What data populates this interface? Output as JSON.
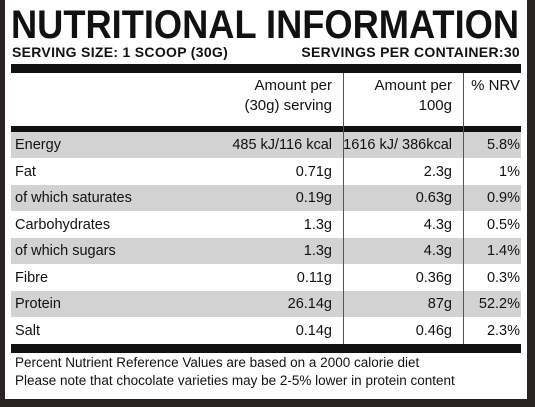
{
  "header": {
    "title": "NUTRITIONAL INFORMATION",
    "serving_size": "SERVING SIZE: 1 SCOOP (30G)",
    "servings_per_container": "SERVINGS PER CONTAINER:30"
  },
  "table": {
    "columns": [
      [
        "Amount per",
        "(30g) serving"
      ],
      [
        "Amount per",
        "100g"
      ],
      [
        "% NRV"
      ]
    ],
    "rows": [
      [
        "Energy",
        "485 kJ/116 kcal",
        "1616 kJ/ 386kcal",
        "5.8%"
      ],
      [
        "Fat",
        "0.71g",
        "2.3g",
        "1%"
      ],
      [
        "of which saturates",
        "0.19g",
        "0.63g",
        "0.9%"
      ],
      [
        "Carbohydrates",
        "1.3g",
        "4.3g",
        "0.5%"
      ],
      [
        "of which sugars",
        "1.3g",
        "4.3g",
        "1.4%"
      ],
      [
        "Fibre",
        "0.11g",
        "0.36g",
        "0.3%"
      ],
      [
        "Protein",
        "26.14g",
        "87g",
        "52.2%"
      ],
      [
        "Salt",
        "0.14g",
        "0.46g",
        "2.3%"
      ]
    ]
  },
  "footnotes": [
    "Percent Nutrient Reference Values are based on a 2000 calorie diet",
    "Please note that chocolate varieties may be 2-5% lower in protein content"
  ]
}
